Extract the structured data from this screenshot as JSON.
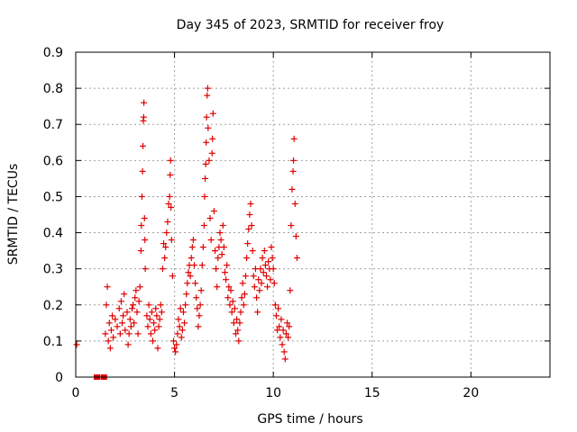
{
  "chart_data": {
    "type": "scatter",
    "title": "Day 345 of 2023, SRMTID for receiver froy",
    "xlabel": "GPS time / hours",
    "ylabel": "SRMTID / TECUs",
    "xlim": [
      0,
      24
    ],
    "ylim": [
      0,
      0.9
    ],
    "x_ticks": [
      0,
      5,
      10,
      15,
      20
    ],
    "x_tick_labels": [
      "0",
      "5",
      "10",
      "15",
      "20"
    ],
    "y_ticks": [
      0,
      0.1,
      0.2,
      0.3,
      0.4,
      0.5,
      0.6,
      0.7,
      0.8,
      0.9
    ],
    "y_tick_labels": [
      "0",
      "0.1",
      "0.2",
      "0.3",
      "0.4",
      "0.5",
      "0.6",
      "0.7",
      "0.8",
      "0.9"
    ],
    "grid": true,
    "marker": "plus",
    "color": "#e00000",
    "zero_points_x": [
      1.05,
      1.1,
      1.4,
      1.45
    ],
    "series": [
      {
        "name": "SRMTID",
        "points": [
          [
            0.05,
            0.09
          ],
          [
            1.5,
            0.12
          ],
          [
            1.55,
            0.2
          ],
          [
            1.6,
            0.25
          ],
          [
            1.65,
            0.1
          ],
          [
            1.7,
            0.15
          ],
          [
            1.75,
            0.08
          ],
          [
            1.8,
            0.13
          ],
          [
            1.85,
            0.17
          ],
          [
            1.9,
            0.11
          ],
          [
            2.0,
            0.16
          ],
          [
            2.1,
            0.14
          ],
          [
            2.2,
            0.19
          ],
          [
            2.25,
            0.12
          ],
          [
            2.3,
            0.21
          ],
          [
            2.35,
            0.15
          ],
          [
            2.4,
            0.17
          ],
          [
            2.45,
            0.23
          ],
          [
            2.5,
            0.13
          ],
          [
            2.6,
            0.18
          ],
          [
            2.65,
            0.09
          ],
          [
            2.7,
            0.12
          ],
          [
            2.75,
            0.16
          ],
          [
            2.8,
            0.14
          ],
          [
            2.85,
            0.19
          ],
          [
            2.9,
            0.2
          ],
          [
            2.95,
            0.15
          ],
          [
            3.0,
            0.22
          ],
          [
            3.05,
            0.24
          ],
          [
            3.1,
            0.18
          ],
          [
            3.15,
            0.12
          ],
          [
            3.2,
            0.21
          ],
          [
            3.25,
            0.25
          ],
          [
            3.3,
            0.35
          ],
          [
            3.32,
            0.42
          ],
          [
            3.35,
            0.5
          ],
          [
            3.38,
            0.57
          ],
          [
            3.4,
            0.64
          ],
          [
            3.42,
            0.71
          ],
          [
            3.44,
            0.72
          ],
          [
            3.45,
            0.76
          ],
          [
            3.48,
            0.44
          ],
          [
            3.5,
            0.38
          ],
          [
            3.52,
            0.3
          ],
          [
            3.6,
            0.17
          ],
          [
            3.65,
            0.14
          ],
          [
            3.7,
            0.2
          ],
          [
            3.75,
            0.16
          ],
          [
            3.8,
            0.12
          ],
          [
            3.85,
            0.18
          ],
          [
            3.9,
            0.1
          ],
          [
            3.95,
            0.15
          ],
          [
            4.0,
            0.13
          ],
          [
            4.05,
            0.19
          ],
          [
            4.1,
            0.17
          ],
          [
            4.15,
            0.08
          ],
          [
            4.2,
            0.14
          ],
          [
            4.25,
            0.16
          ],
          [
            4.3,
            0.2
          ],
          [
            4.35,
            0.18
          ],
          [
            4.4,
            0.3
          ],
          [
            4.45,
            0.37
          ],
          [
            4.5,
            0.33
          ],
          [
            4.55,
            0.36
          ],
          [
            4.6,
            0.4
          ],
          [
            4.65,
            0.43
          ],
          [
            4.7,
            0.48
          ],
          [
            4.75,
            0.5
          ],
          [
            4.78,
            0.56
          ],
          [
            4.8,
            0.6
          ],
          [
            4.82,
            0.47
          ],
          [
            4.85,
            0.38
          ],
          [
            4.9,
            0.28
          ],
          [
            4.95,
            0.1
          ],
          [
            5.0,
            0.08
          ],
          [
            5.05,
            0.07
          ],
          [
            5.1,
            0.09
          ],
          [
            5.15,
            0.12
          ],
          [
            5.2,
            0.16
          ],
          [
            5.25,
            0.14
          ],
          [
            5.3,
            0.19
          ],
          [
            5.35,
            0.11
          ],
          [
            5.4,
            0.13
          ],
          [
            5.45,
            0.18
          ],
          [
            5.5,
            0.15
          ],
          [
            5.55,
            0.2
          ],
          [
            5.6,
            0.23
          ],
          [
            5.65,
            0.26
          ],
          [
            5.7,
            0.29
          ],
          [
            5.75,
            0.31
          ],
          [
            5.8,
            0.28
          ],
          [
            5.85,
            0.33
          ],
          [
            5.9,
            0.36
          ],
          [
            5.95,
            0.38
          ],
          [
            6.0,
            0.31
          ],
          [
            6.05,
            0.26
          ],
          [
            6.1,
            0.22
          ],
          [
            6.15,
            0.19
          ],
          [
            6.2,
            0.14
          ],
          [
            6.25,
            0.17
          ],
          [
            6.3,
            0.2
          ],
          [
            6.35,
            0.24
          ],
          [
            6.4,
            0.31
          ],
          [
            6.45,
            0.36
          ],
          [
            6.5,
            0.42
          ],
          [
            6.52,
            0.5
          ],
          [
            6.55,
            0.55
          ],
          [
            6.58,
            0.59
          ],
          [
            6.6,
            0.65
          ],
          [
            6.62,
            0.72
          ],
          [
            6.65,
            0.78
          ],
          [
            6.68,
            0.8
          ],
          [
            6.7,
            0.69
          ],
          [
            6.75,
            0.6
          ],
          [
            6.8,
            0.44
          ],
          [
            6.85,
            0.38
          ],
          [
            6.9,
            0.62
          ],
          [
            6.92,
            0.66
          ],
          [
            6.95,
            0.73
          ],
          [
            7.0,
            0.46
          ],
          [
            7.05,
            0.35
          ],
          [
            7.1,
            0.3
          ],
          [
            7.15,
            0.25
          ],
          [
            7.2,
            0.33
          ],
          [
            7.25,
            0.36
          ],
          [
            7.3,
            0.4
          ],
          [
            7.35,
            0.38
          ],
          [
            7.4,
            0.34
          ],
          [
            7.45,
            0.42
          ],
          [
            7.5,
            0.36
          ],
          [
            7.55,
            0.29
          ],
          [
            7.6,
            0.27
          ],
          [
            7.65,
            0.31
          ],
          [
            7.7,
            0.22
          ],
          [
            7.75,
            0.25
          ],
          [
            7.8,
            0.2
          ],
          [
            7.85,
            0.24
          ],
          [
            7.9,
            0.18
          ],
          [
            7.95,
            0.21
          ],
          [
            8.0,
            0.15
          ],
          [
            8.05,
            0.19
          ],
          [
            8.1,
            0.12
          ],
          [
            8.15,
            0.16
          ],
          [
            8.2,
            0.13
          ],
          [
            8.25,
            0.1
          ],
          [
            8.3,
            0.15
          ],
          [
            8.35,
            0.18
          ],
          [
            8.4,
            0.22
          ],
          [
            8.45,
            0.26
          ],
          [
            8.5,
            0.2
          ],
          [
            8.55,
            0.23
          ],
          [
            8.6,
            0.28
          ],
          [
            8.65,
            0.33
          ],
          [
            8.7,
            0.37
          ],
          [
            8.75,
            0.41
          ],
          [
            8.8,
            0.45
          ],
          [
            8.85,
            0.48
          ],
          [
            8.9,
            0.42
          ],
          [
            8.95,
            0.35
          ],
          [
            9.0,
            0.28
          ],
          [
            9.05,
            0.25
          ],
          [
            9.1,
            0.3
          ],
          [
            9.15,
            0.22
          ],
          [
            9.2,
            0.18
          ],
          [
            9.25,
            0.27
          ],
          [
            9.3,
            0.24
          ],
          [
            9.35,
            0.3
          ],
          [
            9.4,
            0.26
          ],
          [
            9.45,
            0.33
          ],
          [
            9.5,
            0.29
          ],
          [
            9.55,
            0.35
          ],
          [
            9.6,
            0.31
          ],
          [
            9.65,
            0.28
          ],
          [
            9.7,
            0.25
          ],
          [
            9.75,
            0.32
          ],
          [
            9.8,
            0.3
          ],
          [
            9.85,
            0.27
          ],
          [
            9.9,
            0.36
          ],
          [
            9.95,
            0.33
          ],
          [
            10.0,
            0.3
          ],
          [
            10.05,
            0.26
          ],
          [
            10.1,
            0.2
          ],
          [
            10.15,
            0.17
          ],
          [
            10.2,
            0.13
          ],
          [
            10.25,
            0.19
          ],
          [
            10.3,
            0.14
          ],
          [
            10.35,
            0.11
          ],
          [
            10.4,
            0.16
          ],
          [
            10.45,
            0.09
          ],
          [
            10.5,
            0.13
          ],
          [
            10.55,
            0.07
          ],
          [
            10.6,
            0.05
          ],
          [
            10.65,
            0.12
          ],
          [
            10.7,
            0.15
          ],
          [
            10.75,
            0.11
          ],
          [
            10.8,
            0.14
          ],
          [
            10.85,
            0.24
          ],
          [
            10.9,
            0.42
          ],
          [
            10.95,
            0.52
          ],
          [
            11.0,
            0.57
          ],
          [
            11.02,
            0.6
          ],
          [
            11.05,
            0.66
          ],
          [
            11.1,
            0.48
          ],
          [
            11.15,
            0.39
          ],
          [
            11.2,
            0.33
          ]
        ]
      }
    ]
  }
}
